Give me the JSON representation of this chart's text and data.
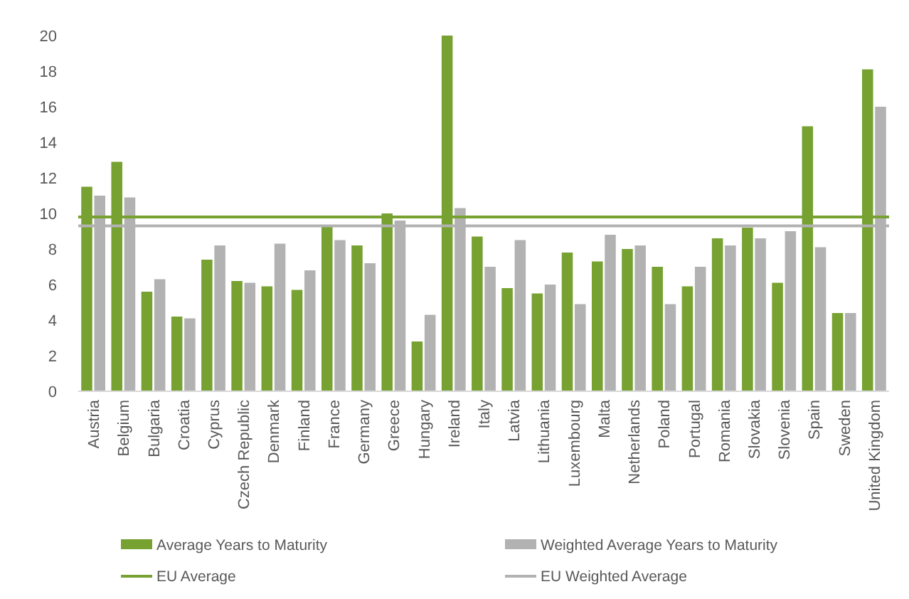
{
  "chart_data": {
    "type": "bar",
    "categories": [
      "Austria",
      "Belgium",
      "Bulgaria",
      "Croatia",
      "Cyprus",
      "Czech Republic",
      "Denmark",
      "Finland",
      "France",
      "Germany",
      "Greece",
      "Hungary",
      "Ireland",
      "Italy",
      "Latvia",
      "Lithuania",
      "Luxembourg",
      "Malta",
      "Netherlands",
      "Poland",
      "Portugal",
      "Romania",
      "Slovakia",
      "Slovenia",
      "Spain",
      "Sweden",
      "United Kingdom"
    ],
    "series": [
      {
        "name": "Average Years to Maturity",
        "color": "#77a131",
        "values": [
          11.5,
          12.9,
          5.6,
          4.2,
          7.4,
          6.2,
          5.9,
          5.7,
          9.3,
          8.2,
          10.0,
          2.8,
          20.0,
          8.7,
          5.8,
          5.5,
          7.8,
          7.3,
          8.0,
          7.0,
          5.9,
          8.6,
          9.2,
          6.1,
          14.9,
          4.4,
          18.1
        ]
      },
      {
        "name": "Weighted Average Years to Maturity",
        "color": "#b2b2b2",
        "values": [
          11.0,
          10.9,
          6.3,
          4.1,
          8.2,
          6.1,
          8.3,
          6.8,
          8.5,
          7.2,
          9.6,
          4.3,
          10.3,
          7.0,
          8.5,
          6.0,
          4.9,
          8.8,
          8.2,
          4.9,
          7.0,
          8.2,
          8.6,
          9.0,
          8.1,
          4.4,
          16.0
        ]
      }
    ],
    "ylim": [
      0,
      20
    ],
    "yticks": [
      0,
      2,
      4,
      6,
      8,
      10,
      12,
      14,
      16,
      18,
      20
    ],
    "grid": false,
    "legend": "bottom",
    "ref_lines": [
      {
        "axis": "y",
        "value": 9.8,
        "label": "EU Average",
        "color": "#77a131"
      },
      {
        "axis": "y",
        "value": 9.3,
        "label": "EU Weighted Average",
        "color": "#b2b2b2"
      }
    ]
  }
}
